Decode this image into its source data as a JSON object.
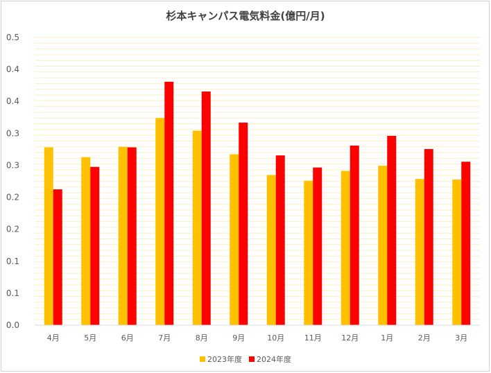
{
  "chart_data": {
    "type": "bar",
    "title": "杉本キャンパス電気料金(億円/月)",
    "xlabel": "",
    "ylabel": "",
    "categories": [
      "4月",
      "5月",
      "6月",
      "7月",
      "8月",
      "9月",
      "10月",
      "11月",
      "12月",
      "1月",
      "2月",
      "3月"
    ],
    "ylim": [
      0,
      0.5
    ],
    "y_tick_labels": [
      "0.0",
      "0.1",
      "0.1",
      "0.2",
      "0.2",
      "0.3",
      "0.3",
      "0.4",
      "0.4",
      "0.5"
    ],
    "series": [
      {
        "name": "2023年度",
        "color": "#FFC000",
        "values": [
          0.309,
          0.292,
          0.31,
          0.36,
          0.338,
          0.297,
          0.261,
          0.251,
          0.268,
          0.277,
          0.254,
          0.253
        ]
      },
      {
        "name": "2024年度",
        "color": "#FF0000",
        "values": [
          0.236,
          0.275,
          0.309,
          0.423,
          0.406,
          0.352,
          0.295,
          0.274,
          0.312,
          0.329,
          0.306,
          0.284
        ]
      }
    ],
    "grid": true,
    "legend_position": "bottom"
  }
}
